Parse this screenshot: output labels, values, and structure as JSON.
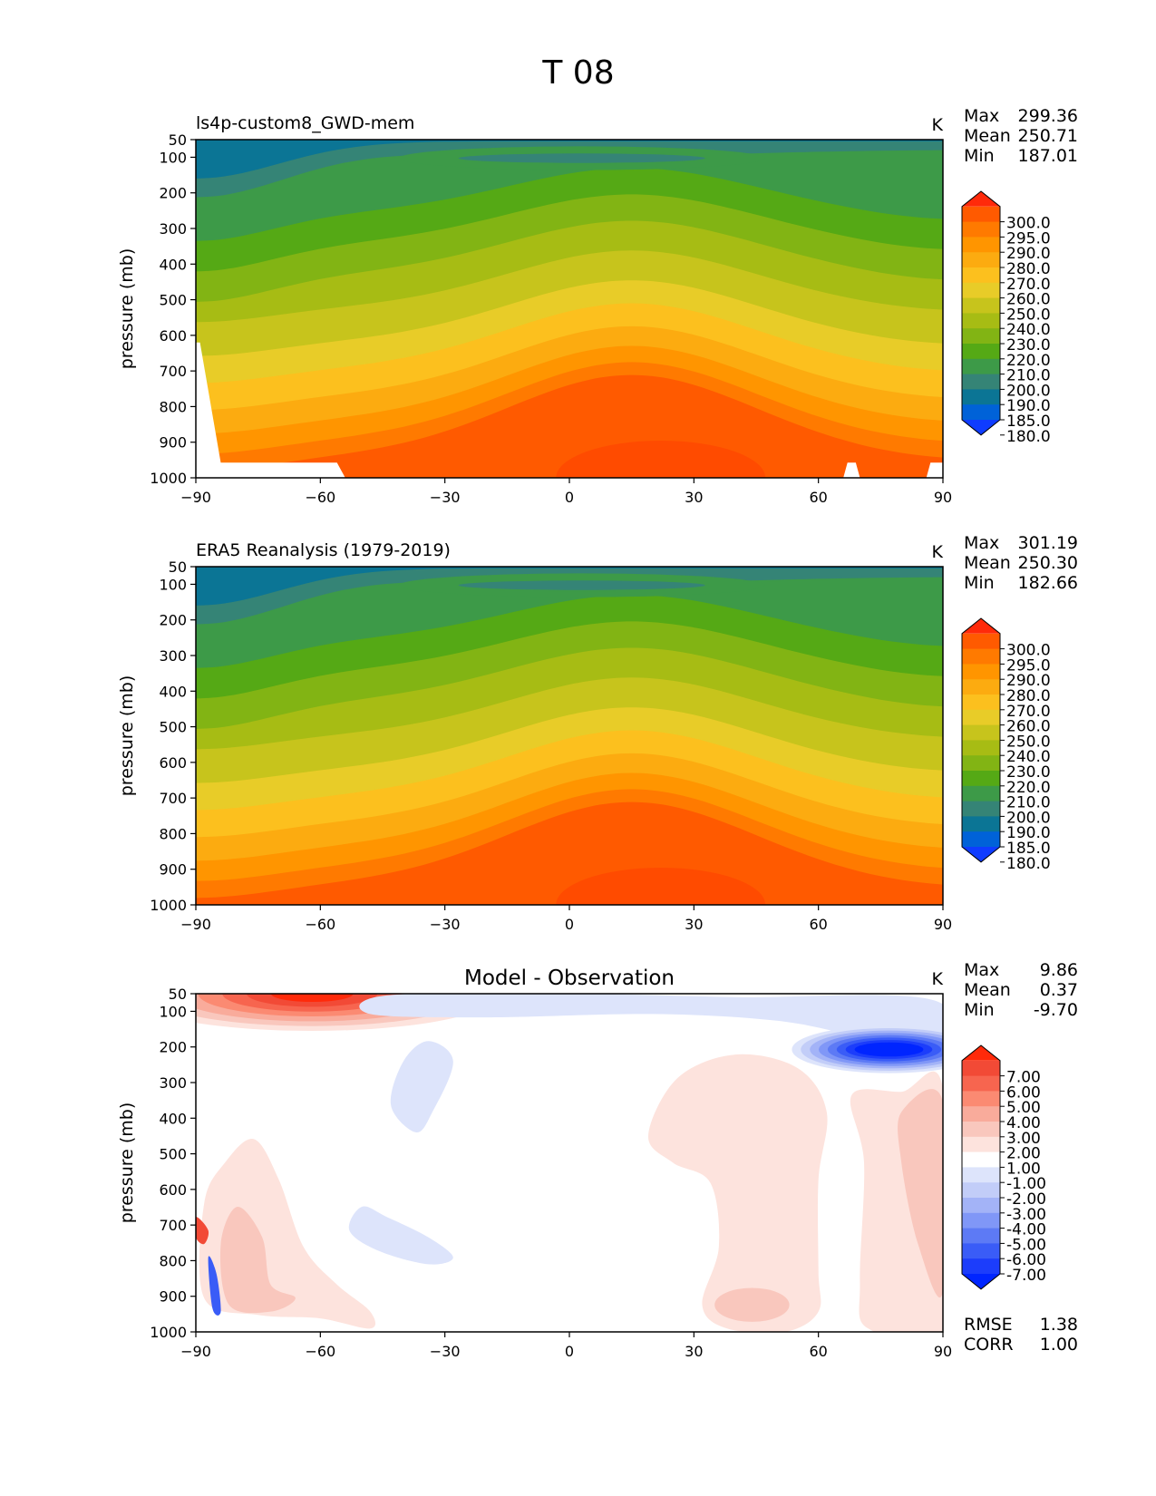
{
  "figure": {
    "title": "T 08"
  },
  "chart_data": [
    {
      "type": "contour",
      "title": "ls4p-custom8_GWD-mem",
      "units": "K",
      "ylabel": "pressure (mb)",
      "xlabel": "",
      "x_ticks": [
        -90,
        -60,
        -30,
        0,
        30,
        60,
        90
      ],
      "y_ticks": [
        50,
        100,
        200,
        300,
        400,
        500,
        600,
        700,
        800,
        900,
        1000
      ],
      "xlim": [
        -90,
        90
      ],
      "ylim": [
        1000,
        50
      ],
      "stats": {
        "max_label": "Max",
        "max": "299.36",
        "mean_label": "Mean",
        "mean": "250.71",
        "min_label": "Min",
        "min": "187.01"
      },
      "colorbar": {
        "levels": [
          "300.0",
          "295.0",
          "290.0",
          "280.0",
          "270.0",
          "260.0",
          "250.0",
          "240.0",
          "230.0",
          "220.0",
          "210.0",
          "200.0",
          "190.0",
          "185.0",
          "180.0"
        ],
        "colors": [
          "#ff2a0a",
          "#ff5a00",
          "#ff7a00",
          "#ff9500",
          "#fcab10",
          "#fcc01e",
          "#e8cc28",
          "#c7c41c",
          "#a7bc14",
          "#82b414",
          "#55a915",
          "#3d9a48",
          "#358476",
          "#0b7595",
          "#0062d8",
          "#0f3cff"
        ]
      },
      "fill_bands": [
        "#0b7595",
        "#358476",
        "#3d9a48",
        "#55a915",
        "#82b414",
        "#a7bc14",
        "#c7c41c",
        "#e8cc28",
        "#fcc01e",
        "#fcab10",
        "#ff9500",
        "#ff7a00",
        "#ff5a00"
      ]
    },
    {
      "type": "contour",
      "title": "ERA5 Reanalysis (1979-2019)",
      "units": "K",
      "ylabel": "pressure (mb)",
      "xlabel": "",
      "x_ticks": [
        -90,
        -60,
        -30,
        0,
        30,
        60,
        90
      ],
      "y_ticks": [
        50,
        100,
        200,
        300,
        400,
        500,
        600,
        700,
        800,
        900,
        1000
      ],
      "xlim": [
        -90,
        90
      ],
      "ylim": [
        1000,
        50
      ],
      "stats": {
        "max_label": "Max",
        "max": "301.19",
        "mean_label": "Mean",
        "mean": "250.30",
        "min_label": "Min",
        "min": "182.66"
      },
      "colorbar": {
        "levels": [
          "300.0",
          "295.0",
          "290.0",
          "280.0",
          "270.0",
          "260.0",
          "250.0",
          "240.0",
          "230.0",
          "220.0",
          "210.0",
          "200.0",
          "190.0",
          "185.0",
          "180.0"
        ],
        "colors": [
          "#ff2a0a",
          "#ff5a00",
          "#ff7a00",
          "#ff9500",
          "#fcab10",
          "#fcc01e",
          "#e8cc28",
          "#c7c41c",
          "#a7bc14",
          "#82b414",
          "#55a915",
          "#3d9a48",
          "#358476",
          "#0b7595",
          "#0062d8",
          "#0f3cff"
        ]
      },
      "fill_bands": [
        "#0b7595",
        "#358476",
        "#3d9a48",
        "#55a915",
        "#82b414",
        "#a7bc14",
        "#c7c41c",
        "#e8cc28",
        "#fcc01e",
        "#fcab10",
        "#ff9500",
        "#ff7a00",
        "#ff5a00"
      ]
    },
    {
      "type": "contour",
      "title": "Model - Observation",
      "units": "K",
      "ylabel": "pressure (mb)",
      "xlabel": "",
      "x_ticks": [
        -90,
        -60,
        -30,
        0,
        30,
        60,
        90
      ],
      "y_ticks": [
        50,
        100,
        200,
        300,
        400,
        500,
        600,
        700,
        800,
        900,
        1000
      ],
      "xlim": [
        -90,
        90
      ],
      "ylim": [
        1000,
        50
      ],
      "stats": {
        "max_label": "Max",
        "max": "9.86",
        "mean_label": "Mean",
        "mean": "0.37",
        "min_label": "Min",
        "min": "-9.70"
      },
      "colorbar": {
        "levels": [
          "7.00",
          "6.00",
          "5.00",
          "4.00",
          "3.00",
          "2.00",
          "1.00",
          "-1.00",
          "-2.00",
          "-3.00",
          "-4.00",
          "-5.00",
          "-6.00",
          "-7.00"
        ],
        "colors": [
          "#ff2a0a",
          "#f24a36",
          "#f7654f",
          "#fb8a72",
          "#f9ab9b",
          "#f9c7bd",
          "#fde3dd",
          "#ffffff",
          "#dde4fb",
          "#c2cdf8",
          "#a3b3f7",
          "#8097f7",
          "#5d7af5",
          "#3a5cf7",
          "#1c3dfb",
          "#0025ff"
        ]
      },
      "metrics": {
        "rmse_label": "RMSE",
        "rmse": "1.38",
        "corr_label": "CORR",
        "corr": "1.00"
      }
    }
  ]
}
